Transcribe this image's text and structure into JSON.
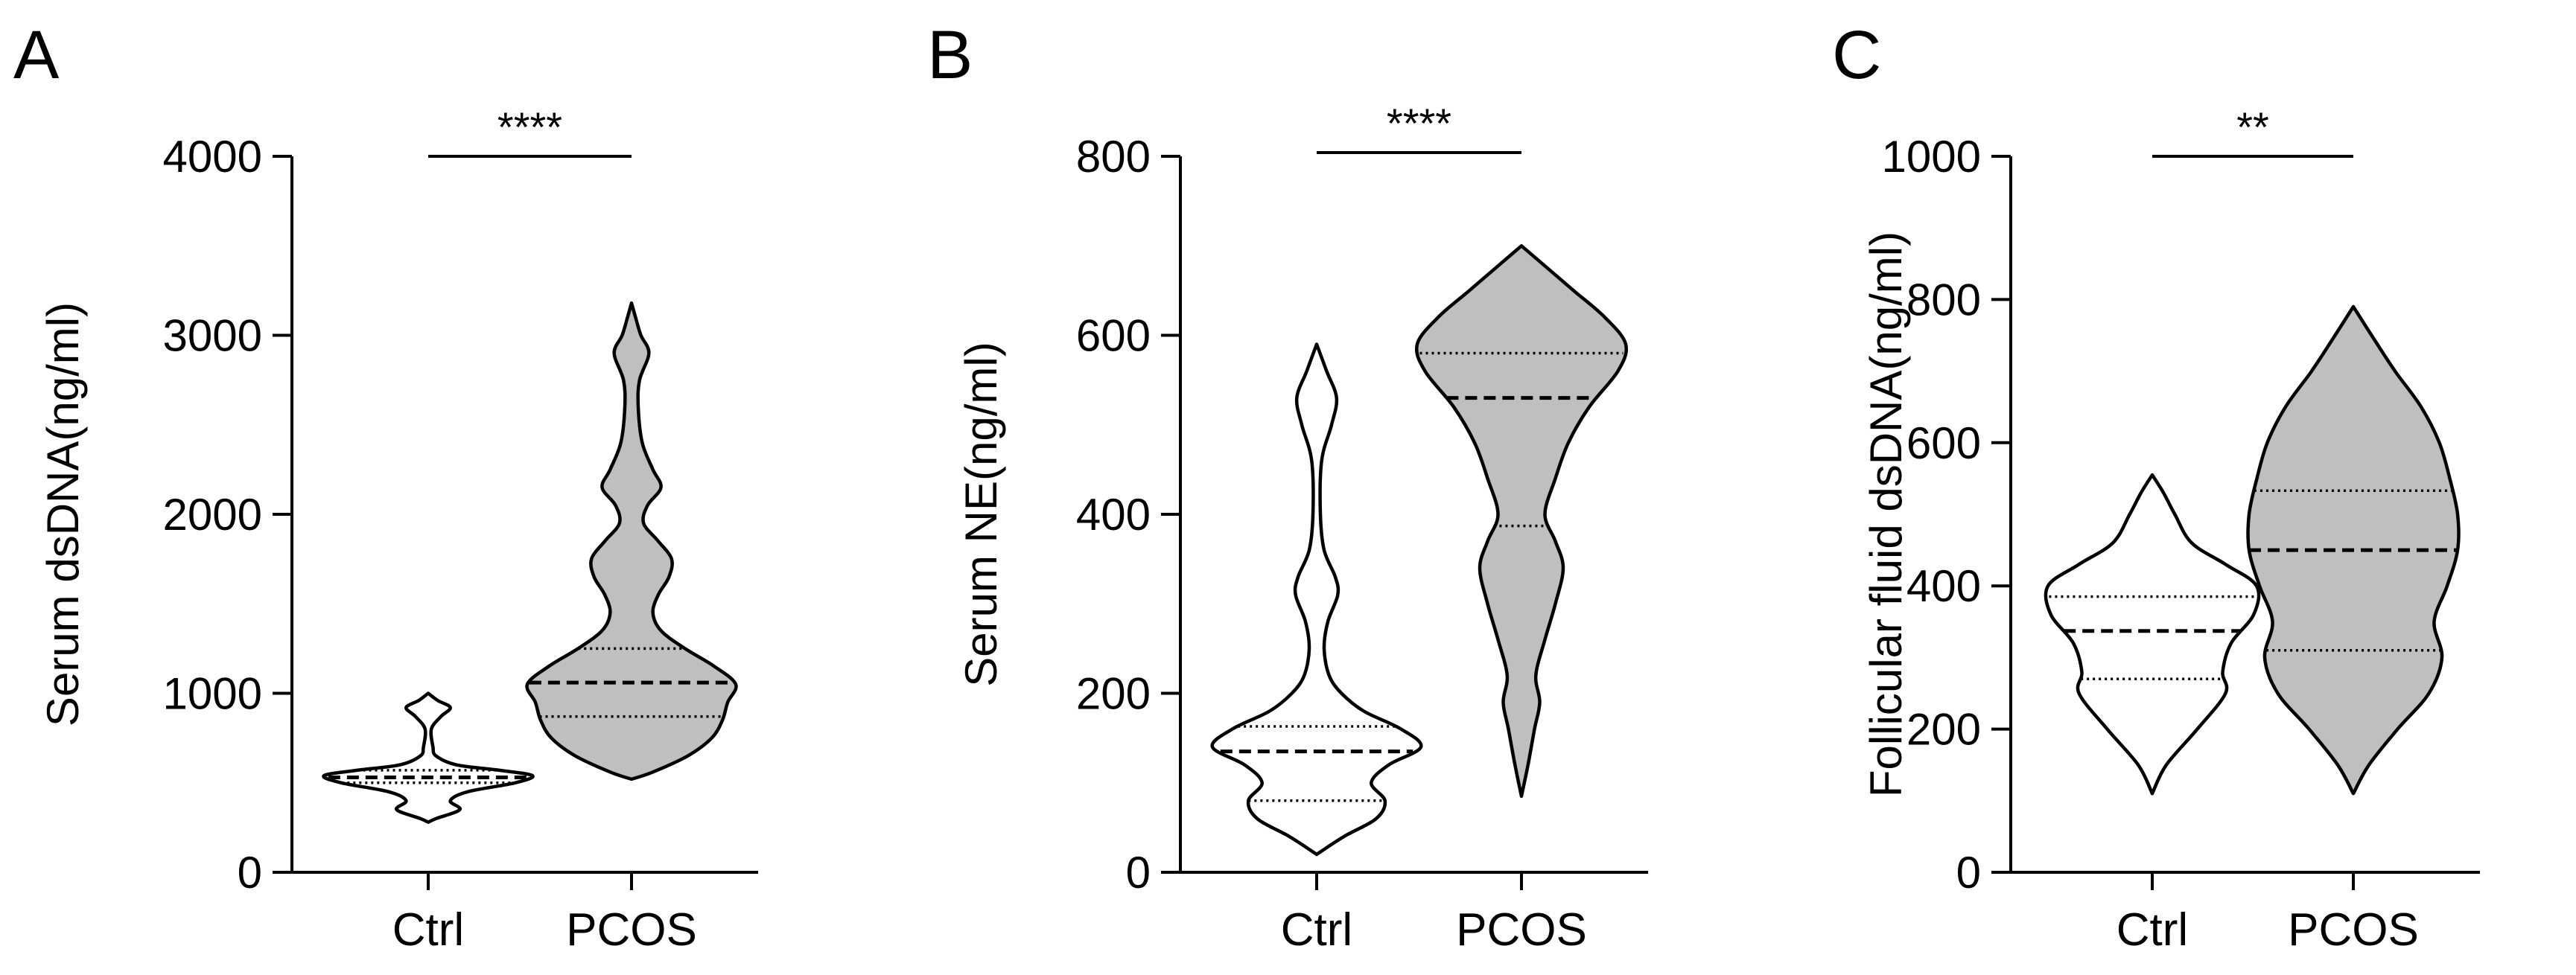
{
  "chart_data": [
    {
      "panel": "A",
      "type": "violin",
      "ylabel": "Serum dsDNA(ng/ml)",
      "ylim": [
        0,
        4000
      ],
      "yticks": [
        0,
        1000,
        2000,
        3000,
        4000
      ],
      "categories": [
        "Ctrl",
        "PCOS"
      ],
      "significance": "****",
      "series": [
        {
          "category": "Ctrl",
          "fill": "#ffffff",
          "median": 530,
          "q1": 500,
          "q3": 570,
          "min": 280,
          "max": 1000,
          "density": [
            [
              280,
              0
            ],
            [
              300,
              5
            ],
            [
              350,
              20
            ],
            [
              400,
              14
            ],
            [
              450,
              25
            ],
            [
              500,
              55
            ],
            [
              540,
              66
            ],
            [
              570,
              45
            ],
            [
              600,
              18
            ],
            [
              650,
              5
            ],
            [
              700,
              3
            ],
            [
              800,
              2
            ],
            [
              870,
              8
            ],
            [
              920,
              14
            ],
            [
              960,
              6
            ],
            [
              1000,
              0
            ]
          ]
        },
        {
          "category": "PCOS",
          "fill": "#bfbfbf",
          "median": 1060,
          "q1": 870,
          "q3": 1250,
          "min": 520,
          "max": 3180,
          "density": [
            [
              520,
              0
            ],
            [
              560,
              16
            ],
            [
              650,
              42
            ],
            [
              750,
              60
            ],
            [
              850,
              68
            ],
            [
              950,
              72
            ],
            [
              1050,
              78
            ],
            [
              1150,
              62
            ],
            [
              1250,
              40
            ],
            [
              1350,
              22
            ],
            [
              1450,
              16
            ],
            [
              1550,
              20
            ],
            [
              1650,
              28
            ],
            [
              1750,
              30
            ],
            [
              1850,
              20
            ],
            [
              1950,
              9
            ],
            [
              2050,
              12
            ],
            [
              2150,
              22
            ],
            [
              2250,
              16
            ],
            [
              2400,
              8
            ],
            [
              2600,
              5
            ],
            [
              2750,
              6
            ],
            [
              2900,
              13
            ],
            [
              3000,
              7
            ],
            [
              3100,
              3
            ],
            [
              3180,
              0
            ]
          ]
        }
      ]
    },
    {
      "panel": "B",
      "type": "violin",
      "ylabel": "Serum NE(ng/ml)",
      "ylim": [
        0,
        800
      ],
      "yticks": [
        0,
        200,
        400,
        600,
        800
      ],
      "categories": [
        "Ctrl",
        "PCOS"
      ],
      "significance": "****",
      "series": [
        {
          "category": "Ctrl",
          "fill": "#ffffff",
          "median": 135,
          "q1": 80,
          "q3": 163,
          "min": 20,
          "max": 590,
          "density": [
            [
              20,
              0
            ],
            [
              40,
              22
            ],
            [
              60,
              48
            ],
            [
              80,
              55
            ],
            [
              100,
              44
            ],
            [
              120,
              58
            ],
            [
              140,
              84
            ],
            [
              160,
              68
            ],
            [
              180,
              38
            ],
            [
              200,
              20
            ],
            [
              220,
              10
            ],
            [
              250,
              6
            ],
            [
              280,
              9
            ],
            [
              310,
              17
            ],
            [
              330,
              15
            ],
            [
              360,
              6
            ],
            [
              400,
              3
            ],
            [
              460,
              4
            ],
            [
              500,
              12
            ],
            [
              530,
              16
            ],
            [
              560,
              8
            ],
            [
              590,
              0
            ]
          ]
        },
        {
          "category": "PCOS",
          "fill": "#bfbfbf",
          "median": 530,
          "q1": 387,
          "q3": 580,
          "min": 85,
          "max": 700,
          "density": [
            [
              85,
              0
            ],
            [
              120,
              5
            ],
            [
              160,
              10
            ],
            [
              190,
              14
            ],
            [
              220,
              11
            ],
            [
              260,
              18
            ],
            [
              300,
              26
            ],
            [
              340,
              32
            ],
            [
              370,
              26
            ],
            [
              400,
              18
            ],
            [
              440,
              26
            ],
            [
              480,
              36
            ],
            [
              520,
              52
            ],
            [
              560,
              74
            ],
            [
              590,
              80
            ],
            [
              620,
              64
            ],
            [
              650,
              40
            ],
            [
              680,
              16
            ],
            [
              700,
              0
            ]
          ]
        }
      ]
    },
    {
      "panel": "C",
      "type": "violin",
      "ylabel": "Follicular fluid dsDNA(ng/ml)",
      "ylim": [
        0,
        1000
      ],
      "yticks": [
        0,
        200,
        400,
        600,
        800,
        1000
      ],
      "categories": [
        "Ctrl",
        "PCOS"
      ],
      "significance": "**",
      "series": [
        {
          "category": "Ctrl",
          "fill": "#ffffff",
          "median": 337,
          "q1": 270,
          "q3": 385,
          "min": 110,
          "max": 555,
          "density": [
            [
              110,
              0
            ],
            [
              150,
              10
            ],
            [
              200,
              32
            ],
            [
              250,
              52
            ],
            [
              280,
              50
            ],
            [
              320,
              56
            ],
            [
              360,
              72
            ],
            [
              400,
              74
            ],
            [
              430,
              52
            ],
            [
              460,
              28
            ],
            [
              500,
              16
            ],
            [
              530,
              8
            ],
            [
              555,
              0
            ]
          ]
        },
        {
          "category": "PCOS",
          "fill": "#bfbfbf",
          "median": 450,
          "q1": 310,
          "q3": 533,
          "min": 110,
          "max": 790,
          "density": [
            [
              110,
              0
            ],
            [
              150,
              12
            ],
            [
              200,
              34
            ],
            [
              250,
              58
            ],
            [
              300,
              68
            ],
            [
              350,
              62
            ],
            [
              400,
              72
            ],
            [
              450,
              80
            ],
            [
              500,
              80
            ],
            [
              550,
              74
            ],
            [
              600,
              66
            ],
            [
              650,
              52
            ],
            [
              700,
              32
            ],
            [
              750,
              14
            ],
            [
              790,
              0
            ]
          ]
        }
      ]
    }
  ]
}
